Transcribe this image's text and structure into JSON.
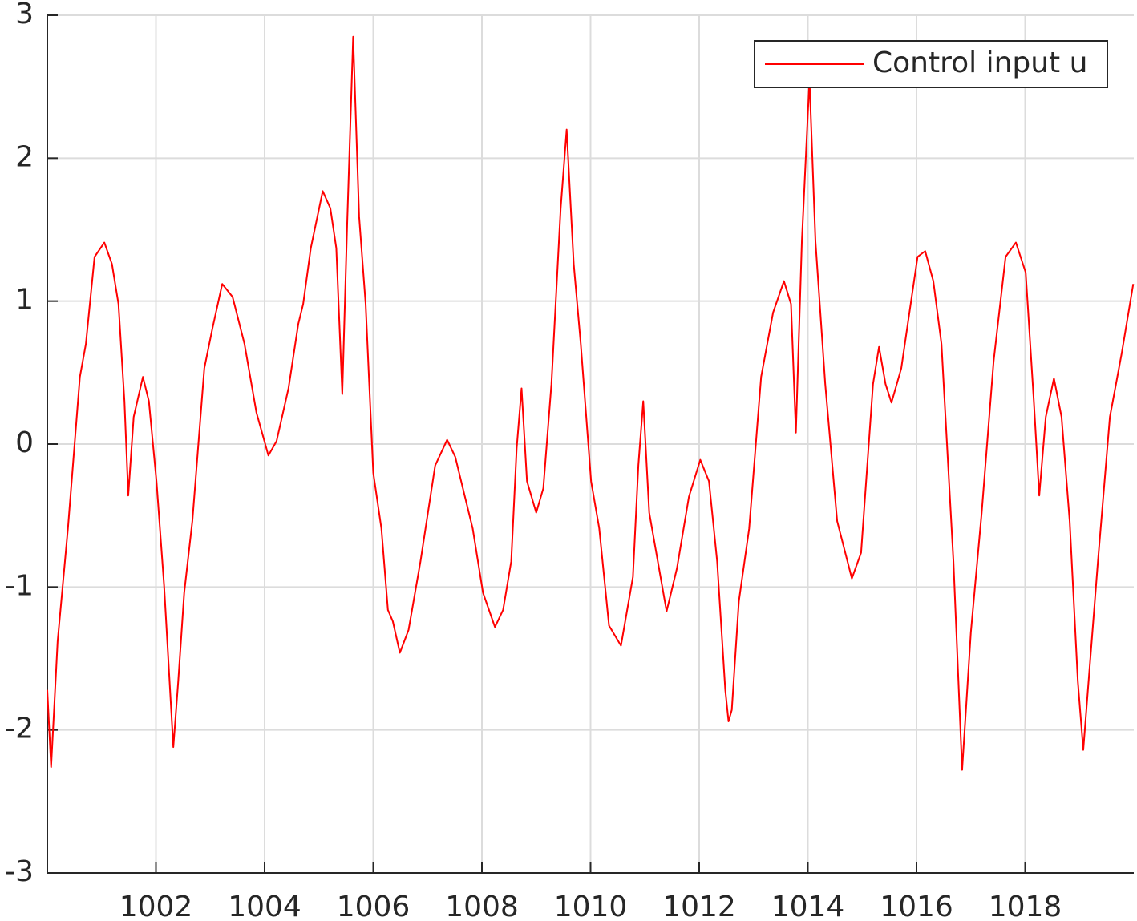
{
  "chart_data": {
    "type": "line",
    "x": [
      1000,
      1000.07,
      1000.19,
      1000.38,
      1000.6,
      1000.71,
      1000.87,
      1001.05,
      1001.19,
      1001.31,
      1001.42,
      1001.49,
      1001.59,
      1001.76,
      1001.87,
      1002.01,
      1002.15,
      1002.32,
      1002.41,
      1002.52,
      1002.67,
      1002.89,
      1003.04,
      1003.22,
      1003.41,
      1003.63,
      1003.85,
      1004.07,
      1004.22,
      1004.44,
      1004.62,
      1004.71,
      1004.85,
      1005.07,
      1005.21,
      1005.32,
      1005.43,
      1005.52,
      1005.63,
      1005.74,
      1005.86,
      1006.0,
      1006.15,
      1006.27,
      1006.36,
      1006.49,
      1006.65,
      1006.87,
      1007.14,
      1007.36,
      1007.51,
      1007.65,
      1007.83,
      1008.02,
      1008.24,
      1008.39,
      1008.54,
      1008.64,
      1008.73,
      1008.83,
      1009.0,
      1009.13,
      1009.28,
      1009.45,
      1009.56,
      1009.69,
      1009.82,
      1010.01,
      1010.16,
      1010.34,
      1010.56,
      1010.78,
      1010.88,
      1010.97,
      1011.08,
      1011.4,
      1011.59,
      1011.81,
      1012.02,
      1012.18,
      1012.33,
      1012.48,
      1012.54,
      1012.6,
      1012.73,
      1012.92,
      1013.14,
      1013.36,
      1013.56,
      1013.69,
      1013.78,
      1013.89,
      1014.03,
      1014.14,
      1014.32,
      1014.54,
      1014.81,
      1014.98,
      1015.2,
      1015.31,
      1015.43,
      1015.54,
      1015.72,
      1016.02,
      1016.16,
      1016.31,
      1016.46,
      1016.68,
      1016.84,
      1017.0,
      1017.2,
      1017.42,
      1017.64,
      1017.83,
      1018.01,
      1018.16,
      1018.26,
      1018.38,
      1018.53,
      1018.67,
      1018.82,
      1018.97,
      1019.07,
      1019.19,
      1019.34,
      1019.56,
      1019.78,
      1019.99
    ],
    "series": [
      {
        "name": "Control input u",
        "color": "#ff0000",
        "values": [
          -1.72,
          -2.26,
          -1.38,
          -0.59,
          0.47,
          0.7,
          1.31,
          1.41,
          1.26,
          0.98,
          0.3,
          -0.36,
          0.19,
          0.47,
          0.3,
          -0.26,
          -0.99,
          -2.12,
          -1.66,
          -1.04,
          -0.54,
          0.53,
          0.81,
          1.12,
          1.03,
          0.7,
          0.22,
          -0.08,
          0.02,
          0.39,
          0.84,
          0.98,
          1.37,
          1.77,
          1.65,
          1.37,
          0.35,
          1.54,
          2.85,
          1.59,
          0.98,
          -0.2,
          -0.59,
          -1.16,
          -1.24,
          -1.46,
          -1.3,
          -0.82,
          -0.15,
          0.03,
          -0.09,
          -0.31,
          -0.59,
          -1.04,
          -1.28,
          -1.16,
          -0.82,
          -0.03,
          0.39,
          -0.26,
          -0.48,
          -0.31,
          0.42,
          1.65,
          2.2,
          1.26,
          0.7,
          -0.26,
          -0.59,
          -1.27,
          -1.41,
          -0.93,
          -0.15,
          0.3,
          -0.48,
          -1.17,
          -0.87,
          -0.37,
          -0.11,
          -0.26,
          -0.82,
          -1.72,
          -1.94,
          -1.86,
          -1.1,
          -0.59,
          0.47,
          0.92,
          1.14,
          0.98,
          0.08,
          1.42,
          2.55,
          1.42,
          0.42,
          -0.54,
          -0.94,
          -0.76,
          0.42,
          0.68,
          0.42,
          0.29,
          0.53,
          1.31,
          1.35,
          1.14,
          0.7,
          -0.82,
          -2.28,
          -1.32,
          -0.48,
          0.58,
          1.31,
          1.41,
          1.2,
          0.3,
          -0.36,
          0.19,
          0.46,
          0.19,
          -0.54,
          -1.66,
          -2.14,
          -1.55,
          -0.82,
          0.19,
          0.64,
          1.12
        ]
      }
    ],
    "xlim": [
      1000,
      1020
    ],
    "ylim": [
      -3,
      3
    ],
    "xticks": [
      1002,
      1004,
      1006,
      1008,
      1010,
      1012,
      1014,
      1016,
      1018
    ],
    "yticks": [
      -3,
      -2,
      -1,
      0,
      1,
      2,
      3
    ],
    "grid": true,
    "legend": "upper right"
  }
}
